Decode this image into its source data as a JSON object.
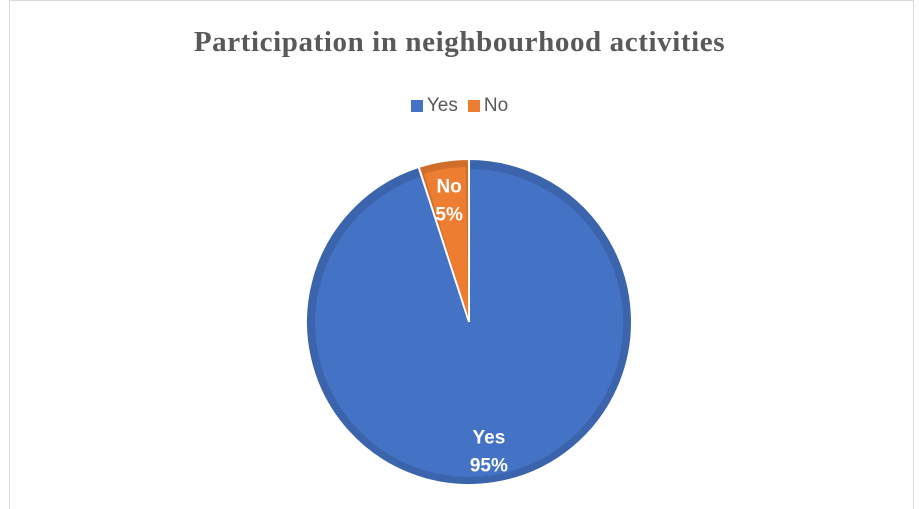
{
  "chart_data": {
    "type": "pie",
    "title": "Participation in neighbourhood activities",
    "legend_position": "top",
    "categories": [
      "Yes",
      "No"
    ],
    "values": [
      95,
      5
    ],
    "unit": "%",
    "colors": [
      "#4472c4",
      "#ed7d31"
    ],
    "data_labels": [
      {
        "category": "Yes",
        "value": "95%"
      },
      {
        "category": "No",
        "value": "5%"
      }
    ],
    "legend": [
      {
        "label": "Yes",
        "color": "#4472c4"
      },
      {
        "label": "No",
        "color": "#ed7d31"
      }
    ]
  }
}
